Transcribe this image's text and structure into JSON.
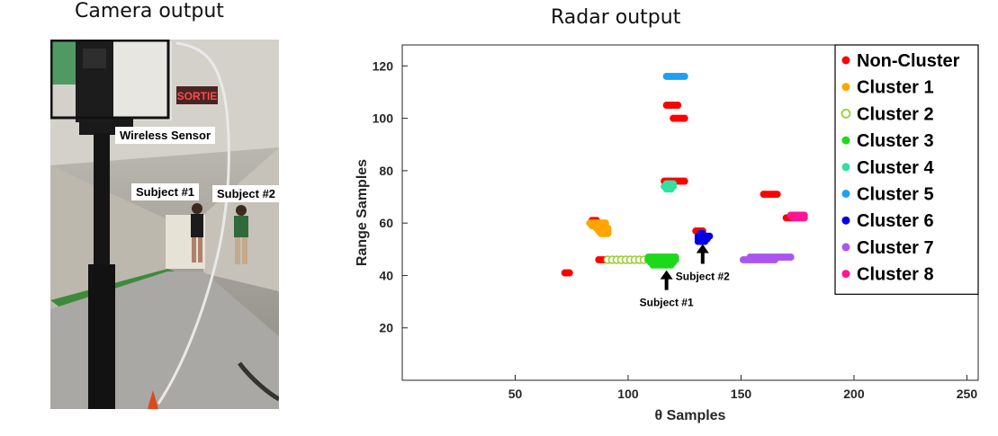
{
  "headings": {
    "camera": "Camera output",
    "radar": "Radar output"
  },
  "camera": {
    "labels": {
      "wireless_sensor": "Wireless Sensor",
      "subject1": "Subject #1",
      "subject2": "Subject #2"
    },
    "exit_sign": "SORTIE"
  },
  "chart_data": {
    "type": "scatter",
    "title": "",
    "xlabel": "θ Samples",
    "ylabel": "Range Samples",
    "xlim": [
      0,
      255
    ],
    "ylim": [
      0,
      128
    ],
    "xticks": [
      50,
      100,
      150,
      200,
      250
    ],
    "yticks": [
      20,
      40,
      60,
      80,
      100,
      120
    ],
    "grid": false,
    "legend_position": "top-right",
    "series": [
      {
        "name": "Non-Cluster",
        "color": "#ff0000",
        "marker": "filled",
        "points": [
          [
            72,
            41
          ],
          [
            73,
            41
          ],
          [
            74,
            41
          ],
          [
            87,
            46
          ],
          [
            88,
            46
          ],
          [
            89,
            46
          ],
          [
            90,
            46
          ],
          [
            84,
            61
          ],
          [
            85,
            61
          ],
          [
            86,
            61
          ],
          [
            117,
            105
          ],
          [
            118,
            105
          ],
          [
            119,
            105
          ],
          [
            120,
            105
          ],
          [
            121,
            105
          ],
          [
            122,
            105
          ],
          [
            120,
            100
          ],
          [
            121,
            100
          ],
          [
            122,
            100
          ],
          [
            123,
            100
          ],
          [
            124,
            100
          ],
          [
            125,
            100
          ],
          [
            116,
            76
          ],
          [
            117,
            76
          ],
          [
            118,
            76
          ],
          [
            119,
            76
          ],
          [
            120,
            76
          ],
          [
            121,
            76
          ],
          [
            122,
            76
          ],
          [
            123,
            76
          ],
          [
            124,
            76
          ],
          [
            125,
            76
          ],
          [
            130,
            57
          ],
          [
            131,
            57
          ],
          [
            132,
            57
          ],
          [
            133,
            57
          ],
          [
            160,
            71
          ],
          [
            161,
            71
          ],
          [
            162,
            71
          ],
          [
            163,
            71
          ],
          [
            164,
            71
          ],
          [
            165,
            71
          ],
          [
            166,
            71
          ],
          [
            170,
            62
          ],
          [
            171,
            62
          ],
          [
            172,
            62
          ],
          [
            173,
            62
          ],
          [
            174,
            62
          ]
        ]
      },
      {
        "name": "Cluster 1",
        "color": "#ffa500",
        "marker": "filled",
        "points": [
          [
            83,
            60
          ],
          [
            84,
            60
          ],
          [
            85,
            60
          ],
          [
            86,
            60
          ],
          [
            87,
            60
          ],
          [
            88,
            60
          ],
          [
            89,
            60
          ],
          [
            90,
            60
          ],
          [
            84,
            59
          ],
          [
            85,
            59
          ],
          [
            86,
            59
          ],
          [
            87,
            59
          ],
          [
            88,
            59
          ],
          [
            89,
            59
          ],
          [
            90,
            59
          ],
          [
            86,
            58
          ],
          [
            87,
            58
          ],
          [
            88,
            58
          ],
          [
            89,
            58
          ],
          [
            90,
            58
          ],
          [
            91,
            58
          ],
          [
            87,
            57
          ],
          [
            88,
            57
          ],
          [
            89,
            57
          ],
          [
            90,
            57
          ],
          [
            91,
            57
          ],
          [
            88,
            56
          ],
          [
            89,
            56
          ],
          [
            90,
            56
          ],
          [
            91,
            56
          ]
        ]
      },
      {
        "name": "Cluster 2",
        "color": "#9acd32",
        "marker": "open",
        "points": [
          [
            91,
            46
          ],
          [
            93,
            46
          ],
          [
            95,
            46
          ],
          [
            97,
            46
          ],
          [
            99,
            46
          ],
          [
            101,
            46
          ],
          [
            103,
            46
          ],
          [
            105,
            46
          ],
          [
            107,
            46
          ],
          [
            109,
            46
          ],
          [
            111,
            46
          ]
        ]
      },
      {
        "name": "Cluster 3",
        "color": "#1ed81e",
        "marker": "filled",
        "points": [
          [
            109,
            47
          ],
          [
            110,
            47
          ],
          [
            111,
            47
          ],
          [
            112,
            47
          ],
          [
            113,
            47
          ],
          [
            114,
            47
          ],
          [
            115,
            47
          ],
          [
            116,
            47
          ],
          [
            117,
            47
          ],
          [
            118,
            47
          ],
          [
            119,
            47
          ],
          [
            120,
            47
          ],
          [
            121,
            47
          ],
          [
            109,
            46
          ],
          [
            110,
            46
          ],
          [
            111,
            46
          ],
          [
            112,
            46
          ],
          [
            113,
            46
          ],
          [
            114,
            46
          ],
          [
            115,
            46
          ],
          [
            116,
            46
          ],
          [
            117,
            46
          ],
          [
            118,
            46
          ],
          [
            119,
            46
          ],
          [
            120,
            46
          ],
          [
            121,
            46
          ],
          [
            110,
            45
          ],
          [
            111,
            45
          ],
          [
            112,
            45
          ],
          [
            113,
            45
          ],
          [
            114,
            45
          ],
          [
            115,
            45
          ],
          [
            116,
            45
          ],
          [
            117,
            45
          ],
          [
            118,
            45
          ],
          [
            119,
            45
          ],
          [
            120,
            45
          ],
          [
            111,
            44
          ],
          [
            112,
            44
          ],
          [
            113,
            44
          ],
          [
            114,
            44
          ],
          [
            115,
            44
          ],
          [
            116,
            44
          ],
          [
            117,
            44
          ],
          [
            118,
            44
          ],
          [
            119,
            44
          ]
        ]
      },
      {
        "name": "Cluster 4",
        "color": "#32e0a0",
        "marker": "filled",
        "points": [
          [
            117,
            75
          ],
          [
            118,
            75
          ],
          [
            119,
            75
          ],
          [
            120,
            75
          ],
          [
            116,
            74
          ],
          [
            117,
            74
          ],
          [
            118,
            74
          ],
          [
            119,
            74
          ],
          [
            120,
            74
          ],
          [
            117,
            73
          ],
          [
            118,
            73
          ],
          [
            119,
            73
          ]
        ]
      },
      {
        "name": "Cluster 5",
        "color": "#1ea0f0",
        "marker": "filled",
        "points": [
          [
            117,
            116
          ],
          [
            118,
            116
          ],
          [
            119,
            116
          ],
          [
            120,
            116
          ],
          [
            121,
            116
          ],
          [
            122,
            116
          ],
          [
            123,
            116
          ],
          [
            124,
            116
          ],
          [
            125,
            116
          ]
        ]
      },
      {
        "name": "Cluster 6",
        "color": "#0000e6",
        "marker": "filled",
        "points": [
          [
            131,
            55
          ],
          [
            132,
            55
          ],
          [
            133,
            55
          ],
          [
            134,
            55
          ],
          [
            135,
            55
          ],
          [
            136,
            55
          ],
          [
            131,
            54
          ],
          [
            132,
            54
          ],
          [
            133,
            54
          ],
          [
            134,
            54
          ],
          [
            135,
            54
          ],
          [
            131,
            53
          ],
          [
            132,
            53
          ],
          [
            133,
            53
          ],
          [
            134,
            53
          ],
          [
            132,
            56
          ],
          [
            133,
            56
          ]
        ]
      },
      {
        "name": "Cluster 7",
        "color": "#aa55f0",
        "marker": "filled",
        "points": [
          [
            151,
            46
          ],
          [
            152,
            46
          ],
          [
            153,
            46
          ],
          [
            154,
            46
          ],
          [
            155,
            46
          ],
          [
            156,
            46
          ],
          [
            157,
            46
          ],
          [
            158,
            46
          ],
          [
            159,
            46
          ],
          [
            160,
            46
          ],
          [
            161,
            46
          ],
          [
            162,
            46
          ],
          [
            163,
            46
          ],
          [
            164,
            46
          ],
          [
            165,
            46
          ],
          [
            154,
            47
          ],
          [
            155,
            47
          ],
          [
            156,
            47
          ],
          [
            157,
            47
          ],
          [
            158,
            47
          ],
          [
            159,
            47
          ],
          [
            160,
            47
          ],
          [
            161,
            47
          ],
          [
            162,
            47
          ],
          [
            163,
            47
          ],
          [
            164,
            47
          ],
          [
            165,
            47
          ],
          [
            166,
            47
          ],
          [
            167,
            47
          ],
          [
            168,
            47
          ],
          [
            169,
            47
          ],
          [
            170,
            47
          ],
          [
            171,
            47
          ],
          [
            172,
            47
          ]
        ]
      },
      {
        "name": "Cluster 8",
        "color": "#ff1493",
        "marker": "filled",
        "points": [
          [
            172,
            63
          ],
          [
            173,
            63
          ],
          [
            174,
            63
          ],
          [
            175,
            63
          ],
          [
            176,
            63
          ],
          [
            177,
            63
          ],
          [
            178,
            63
          ],
          [
            173,
            62
          ],
          [
            174,
            62
          ],
          [
            175,
            62
          ],
          [
            176,
            62
          ],
          [
            177,
            62
          ],
          [
            178,
            62
          ]
        ]
      }
    ],
    "annotations": [
      {
        "text": "Subject #1",
        "arrow_tip": [
          117,
          42
        ]
      },
      {
        "text": "Subject #2",
        "arrow_tip": [
          133,
          52
        ]
      }
    ]
  }
}
